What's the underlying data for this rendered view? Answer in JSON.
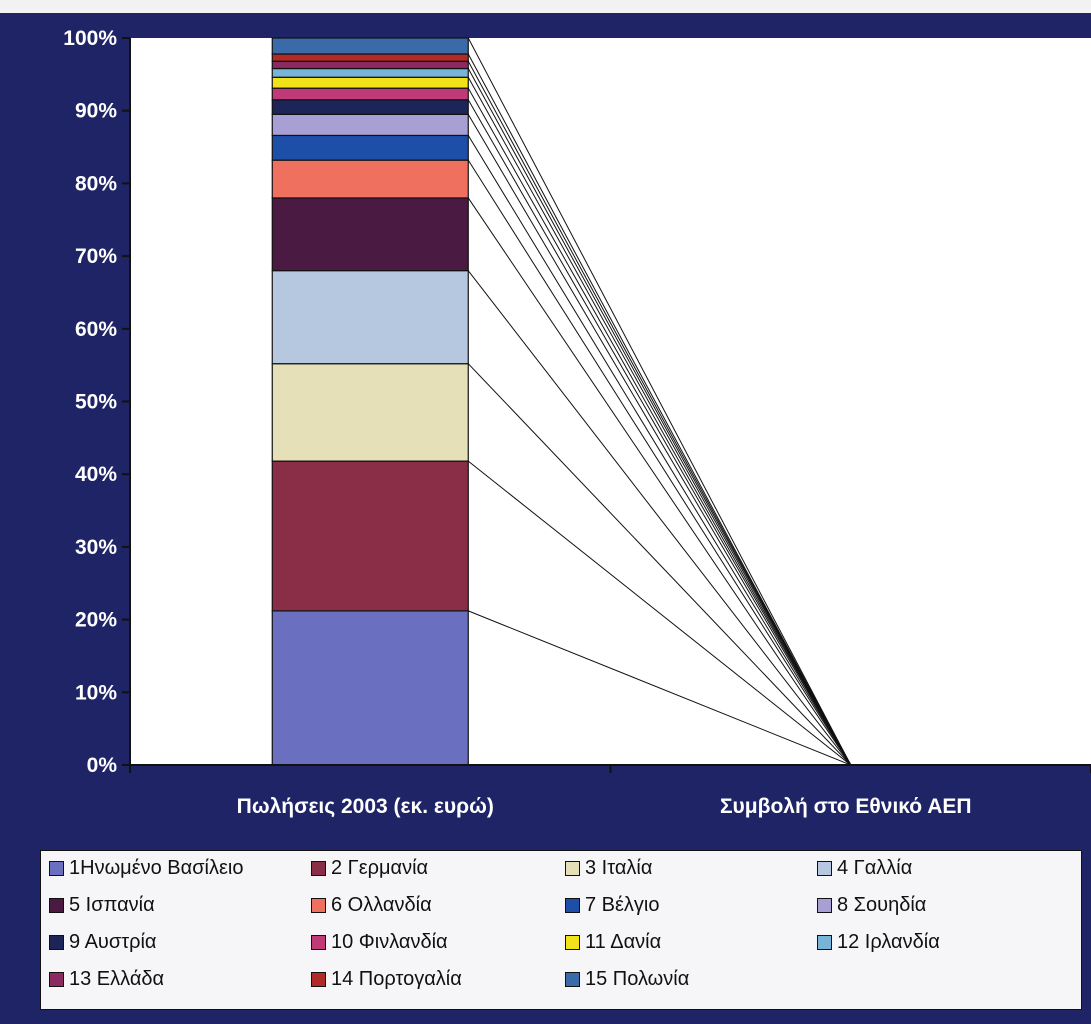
{
  "chart_data": {
    "type": "bar",
    "stacked": true,
    "percent_stacked": true,
    "categories": [
      "Πωλήσεις 2003 (εκ. ευρώ)",
      "Συμβολή στο Εθνικό ΑΕΠ"
    ],
    "y_ticks": [
      "0%",
      "10%",
      "20%",
      "30%",
      "40%",
      "50%",
      "60%",
      "70%",
      "80%",
      "90%",
      "100%"
    ],
    "ylim": [
      0,
      100
    ],
    "legend_position": "bottom",
    "series_lines": true,
    "series": [
      {
        "name": "1Ηνωμένο Βασίλειο",
        "color": "#6a6fc0",
        "values": [
          21.2,
          0
        ]
      },
      {
        "name": "2 Γερμανία",
        "color": "#8a2e48",
        "values": [
          20.6,
          0
        ]
      },
      {
        "name": "3 Ιταλία",
        "color": "#e6e0b8",
        "values": [
          13.4,
          0
        ]
      },
      {
        "name": "4 Γαλλία",
        "color": "#b6c8e0",
        "values": [
          12.8,
          0
        ]
      },
      {
        "name": "5 Ισπανία",
        "color": "#4a1a42",
        "values": [
          10.0,
          0
        ]
      },
      {
        "name": "6 Ολλανδία",
        "color": "#f07060",
        "values": [
          5.2,
          0
        ]
      },
      {
        "name": "7 Βέλγιο",
        "color": "#1e4fa8",
        "values": [
          3.4,
          0
        ]
      },
      {
        "name": "8 Σουηδία",
        "color": "#a8a0d4",
        "values": [
          2.9,
          0
        ]
      },
      {
        "name": "9 Αυστρία",
        "color": "#1c2458",
        "values": [
          2.0,
          0
        ]
      },
      {
        "name": "10 Φινλανδία",
        "color": "#c03a78",
        "values": [
          1.6,
          0
        ]
      },
      {
        "name": "11 Δανία",
        "color": "#f2e21a",
        "values": [
          1.5,
          0
        ]
      },
      {
        "name": "12 Ιρλανδία",
        "color": "#78b4d8",
        "values": [
          1.2,
          0
        ]
      },
      {
        "name": "13 Ελλάδα",
        "color": "#8a2a60",
        "values": [
          1.0,
          0
        ]
      },
      {
        "name": "14 Πορτογαλία",
        "color": "#b02a28",
        "values": [
          1.0,
          0
        ]
      },
      {
        "name": "15 Πολωνία",
        "color": "#3a6aa8",
        "values": [
          2.2,
          0
        ]
      }
    ]
  }
}
